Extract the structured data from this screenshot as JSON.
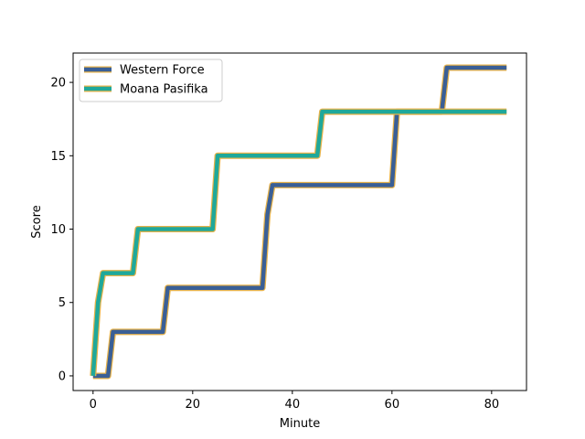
{
  "chart_data": {
    "type": "line",
    "title": "",
    "xlabel": "Minute",
    "ylabel": "Score",
    "xlim": [
      -4,
      87
    ],
    "ylim": [
      -1,
      22
    ],
    "xticks": [
      0,
      20,
      40,
      60,
      80
    ],
    "yticks": [
      0,
      5,
      10,
      15,
      20
    ],
    "grid": false,
    "legend_position": "upper left",
    "series": [
      {
        "name": "Western Force",
        "color": "#3a5f96",
        "edge_color": "#e8b34a",
        "x": [
          0,
          3,
          4,
          14,
          15,
          34,
          35,
          36,
          60,
          61,
          70,
          71,
          83
        ],
        "y": [
          0,
          0,
          3,
          3,
          6,
          6,
          11,
          13,
          13,
          18,
          18,
          21,
          21
        ]
      },
      {
        "name": "Moana Pasifika",
        "color": "#1fa89a",
        "edge_color": "#e8b34a",
        "x": [
          0,
          1,
          2,
          8,
          9,
          24,
          25,
          45,
          46,
          83
        ],
        "y": [
          0,
          5,
          7,
          7,
          10,
          10,
          15,
          15,
          18,
          18
        ]
      }
    ]
  }
}
